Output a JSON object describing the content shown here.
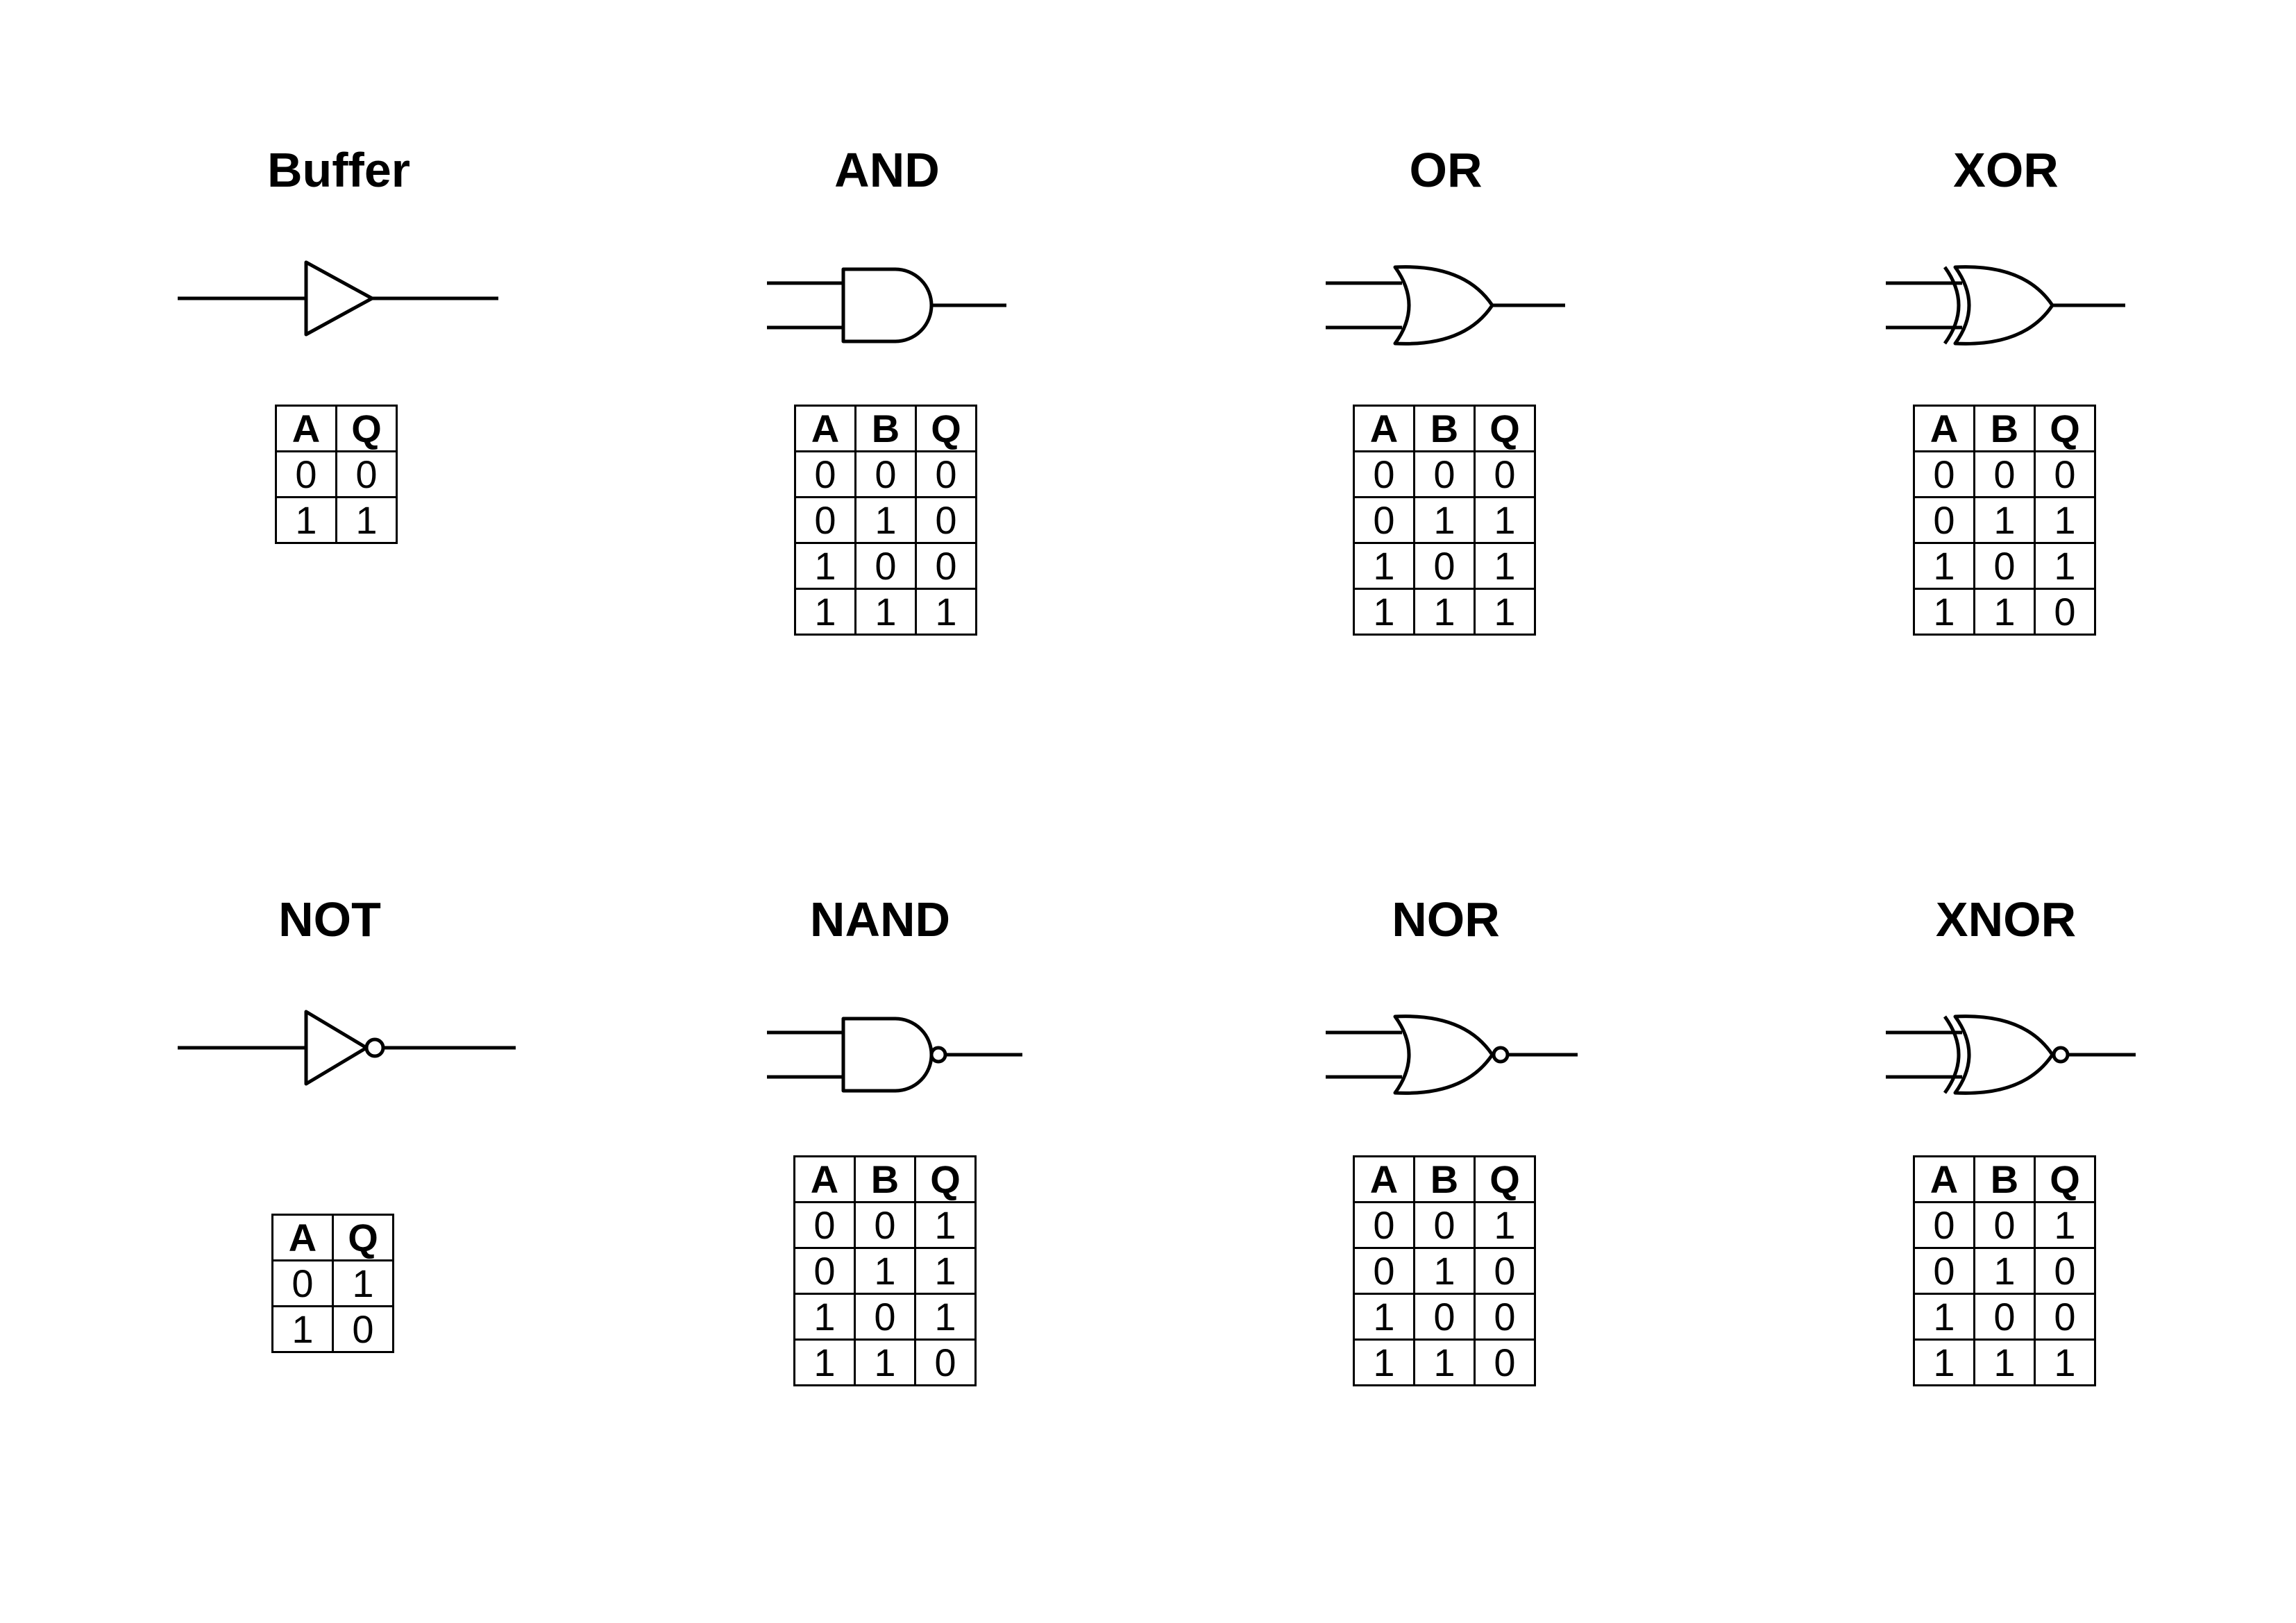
{
  "gates": [
    {
      "title": "Buffer",
      "headers": [
        "A",
        "Q"
      ],
      "rows": [
        [
          "0",
          "0"
        ],
        [
          "1",
          "1"
        ]
      ]
    },
    {
      "title": "AND",
      "headers": [
        "A",
        "B",
        "Q"
      ],
      "rows": [
        [
          "0",
          "0",
          "0"
        ],
        [
          "0",
          "1",
          "0"
        ],
        [
          "1",
          "0",
          "0"
        ],
        [
          "1",
          "1",
          "1"
        ]
      ]
    },
    {
      "title": "OR",
      "headers": [
        "A",
        "B",
        "Q"
      ],
      "rows": [
        [
          "0",
          "0",
          "0"
        ],
        [
          "0",
          "1",
          "1"
        ],
        [
          "1",
          "0",
          "1"
        ],
        [
          "1",
          "1",
          "1"
        ]
      ]
    },
    {
      "title": "XOR",
      "headers": [
        "A",
        "B",
        "Q"
      ],
      "rows": [
        [
          "0",
          "0",
          "0"
        ],
        [
          "0",
          "1",
          "1"
        ],
        [
          "1",
          "0",
          "1"
        ],
        [
          "1",
          "1",
          "0"
        ]
      ]
    },
    {
      "title": "NOT",
      "headers": [
        "A",
        "Q"
      ],
      "rows": [
        [
          "0",
          "1"
        ],
        [
          "1",
          "0"
        ]
      ]
    },
    {
      "title": "NAND",
      "headers": [
        "A",
        "B",
        "Q"
      ],
      "rows": [
        [
          "0",
          "0",
          "1"
        ],
        [
          "0",
          "1",
          "1"
        ],
        [
          "1",
          "0",
          "1"
        ],
        [
          "1",
          "1",
          "0"
        ]
      ]
    },
    {
      "title": "NOR",
      "headers": [
        "A",
        "B",
        "Q"
      ],
      "rows": [
        [
          "0",
          "0",
          "1"
        ],
        [
          "0",
          "1",
          "0"
        ],
        [
          "1",
          "0",
          "0"
        ],
        [
          "1",
          "1",
          "0"
        ]
      ]
    },
    {
      "title": "XNOR",
      "headers": [
        "A",
        "B",
        "Q"
      ],
      "rows": [
        [
          "0",
          "0",
          "1"
        ],
        [
          "0",
          "1",
          "0"
        ],
        [
          "1",
          "0",
          "0"
        ],
        [
          "1",
          "1",
          "1"
        ]
      ]
    }
  ]
}
